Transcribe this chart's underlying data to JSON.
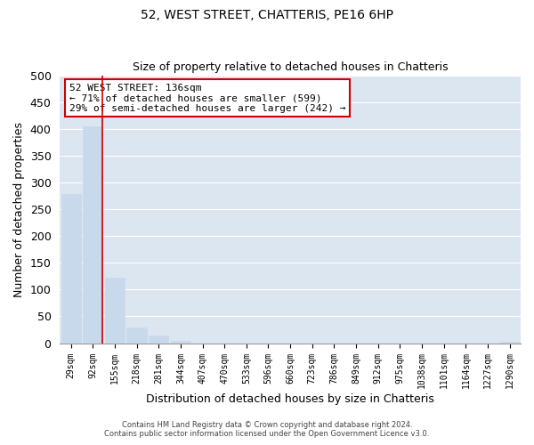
{
  "title": "52, WEST STREET, CHATTERIS, PE16 6HP",
  "subtitle": "Size of property relative to detached houses in Chatteris",
  "xlabel": "Distribution of detached houses by size in Chatteris",
  "ylabel": "Number of detached properties",
  "bar_labels": [
    "29sqm",
    "92sqm",
    "155sqm",
    "218sqm",
    "281sqm",
    "344sqm",
    "407sqm",
    "470sqm",
    "533sqm",
    "596sqm",
    "660sqm",
    "723sqm",
    "786sqm",
    "849sqm",
    "912sqm",
    "975sqm",
    "1038sqm",
    "1101sqm",
    "1164sqm",
    "1227sqm",
    "1290sqm"
  ],
  "bar_values": [
    278,
    405,
    122,
    29,
    15,
    5,
    0,
    0,
    0,
    0,
    0,
    0,
    0,
    0,
    0,
    0,
    0,
    0,
    0,
    0,
    2
  ],
  "bar_color": "#c9d9ec",
  "bar_edge_color": "#c9d9ec",
  "grid_color": "#ffffff",
  "background_color": "#dce6f1",
  "ylim": [
    0,
    500
  ],
  "yticks": [
    0,
    50,
    100,
    150,
    200,
    250,
    300,
    350,
    400,
    450,
    500
  ],
  "property_line_color": "#cc0000",
  "annotation_text": "52 WEST STREET: 136sqm\n← 71% of detached houses are smaller (599)\n29% of semi-detached houses are larger (242) →",
  "annotation_box_color": "#ffffff",
  "annotation_box_edge": "#cc0000",
  "footer_line1": "Contains HM Land Registry data © Crown copyright and database right 2024.",
  "footer_line2": "Contains public sector information licensed under the Open Government Licence v3.0."
}
